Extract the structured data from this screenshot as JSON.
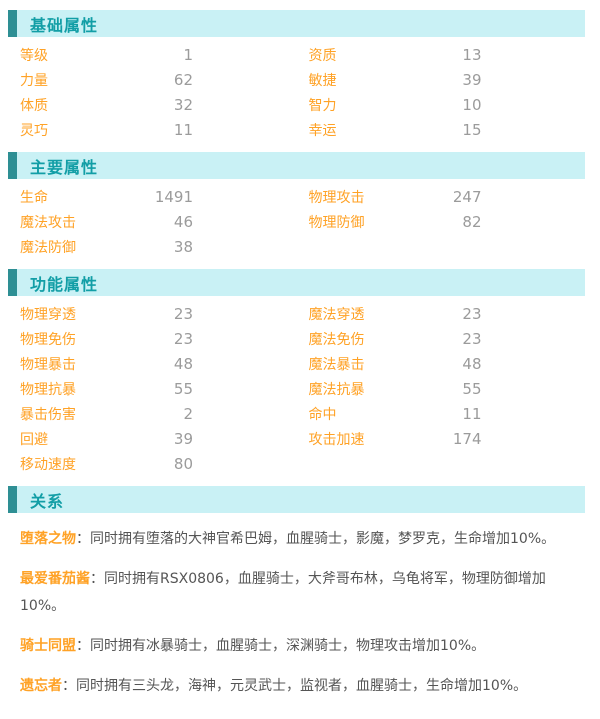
{
  "colors": {
    "header_bg": "#c9f1f5",
    "header_bar": "#2e8f94",
    "header_text": "#129ea6",
    "label_orange": "#ffa226",
    "value_gray": "#9b9b9b",
    "body_text": "#555555"
  },
  "sections": [
    {
      "title": "基础属性",
      "cells": [
        {
          "label": "等级",
          "value": "1"
        },
        {
          "label": "资质",
          "value": "13"
        },
        {
          "label": "力量",
          "value": "62"
        },
        {
          "label": "敏捷",
          "value": "39"
        },
        {
          "label": "体质",
          "value": "32"
        },
        {
          "label": "智力",
          "value": "10"
        },
        {
          "label": "灵巧",
          "value": "11"
        },
        {
          "label": "幸运",
          "value": "15"
        }
      ]
    },
    {
      "title": "主要属性",
      "cells": [
        {
          "label": "生命",
          "value": "1491"
        },
        {
          "label": "物理攻击",
          "value": "247"
        },
        {
          "label": "魔法攻击",
          "value": "46"
        },
        {
          "label": "物理防御",
          "value": "82"
        },
        {
          "label": "魔法防御",
          "value": "38"
        }
      ]
    },
    {
      "title": "功能属性",
      "cells": [
        {
          "label": "物理穿透",
          "value": "23"
        },
        {
          "label": "魔法穿透",
          "value": "23"
        },
        {
          "label": "物理免伤",
          "value": "23"
        },
        {
          "label": "魔法免伤",
          "value": "23"
        },
        {
          "label": "物理暴击",
          "value": "48"
        },
        {
          "label": "魔法暴击",
          "value": "48"
        },
        {
          "label": "物理抗暴",
          "value": "55"
        },
        {
          "label": "魔法抗暴",
          "value": "55"
        },
        {
          "label": "暴击伤害",
          "value": "2"
        },
        {
          "label": "命中",
          "value": "11"
        },
        {
          "label": "回避",
          "value": "39"
        },
        {
          "label": "攻击加速",
          "value": "174"
        },
        {
          "label": "移动速度",
          "value": "80"
        }
      ]
    }
  ],
  "relations": {
    "title": "关系",
    "items": [
      {
        "label": "堕落之物",
        "text": "：同时拥有堕落的大神官希巴姆，血腥骑士，影魔，梦罗克，生命增加10%。"
      },
      {
        "label": "最爱番茄酱",
        "text": "：同时拥有RSX0806，血腥骑士，大斧哥布林，乌龟将军，物理防御增加10%。"
      },
      {
        "label": "骑士同盟",
        "text": "：同时拥有冰暴骑士，血腥骑士，深渊骑士，物理攻击增加10%。"
      },
      {
        "label": "遗忘者",
        "text": "：同时拥有三头龙，海神，元灵武士，监视者，血腥骑士，生命增加10%。"
      }
    ]
  }
}
